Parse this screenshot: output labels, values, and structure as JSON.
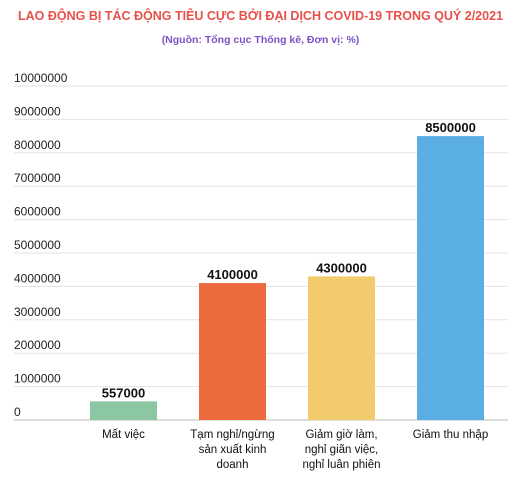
{
  "chart_data": {
    "type": "bar",
    "title": "LAO ĐỘNG BỊ TÁC ĐỘNG TIÊU CỰC BỞI ĐẠI DỊCH COVID-19 TRONG QUÝ 2/2021",
    "subtitle": "(Nguồn: Tổng cục Thống kê, Đơn vị: %)",
    "categories": [
      [
        "Mất việc"
      ],
      [
        "Tạm nghỉ/ngừng",
        "sản xuất kinh",
        "doanh"
      ],
      [
        "Giảm giờ làm,",
        "nghỉ giãn việc,",
        "nghỉ luân phiên"
      ],
      [
        "Giảm thu nhập"
      ]
    ],
    "values": [
      557000,
      4100000,
      4300000,
      8500000
    ],
    "value_labels": [
      "557000",
      "4100000",
      "4300000",
      "8500000"
    ],
    "colors": [
      "#8cc7a4",
      "#ec6a3b",
      "#f1cb6c",
      "#5aaee3"
    ],
    "ylim": [
      0,
      10000000
    ],
    "yticks": [
      0,
      1000000,
      2000000,
      3000000,
      4000000,
      5000000,
      6000000,
      7000000,
      8000000,
      9000000,
      10000000
    ],
    "ytick_labels": [
      "0",
      "1000000",
      "2000000",
      "3000000",
      "4000000",
      "5000000",
      "6000000",
      "7000000",
      "8000000",
      "9000000",
      "10000000"
    ],
    "grid": true,
    "xlabel": "",
    "ylabel": ""
  }
}
